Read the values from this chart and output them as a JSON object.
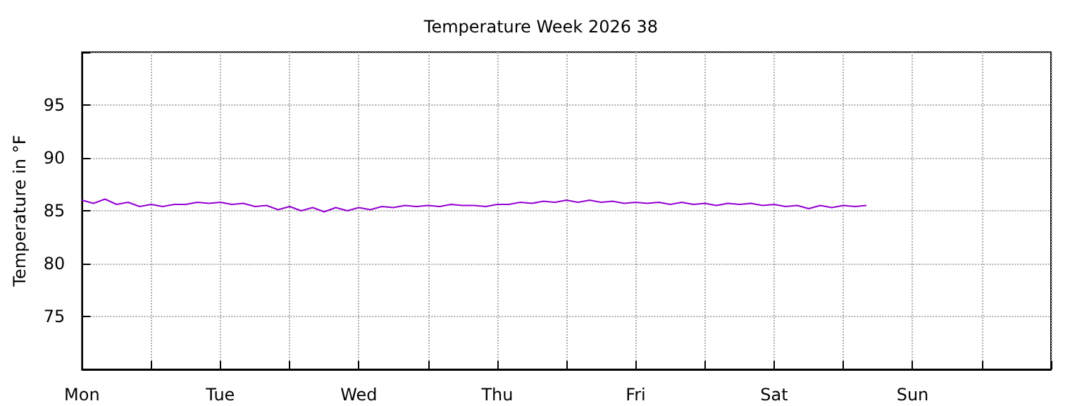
{
  "chart_data": {
    "type": "line",
    "title": "Temperature Week 2026 38",
    "ylabel": "Temperature in °F",
    "categories": [
      "Mon",
      null,
      null,
      null,
      null,
      null,
      null,
      null,
      null,
      null,
      null,
      null,
      "Tue",
      null,
      null,
      null,
      null,
      null,
      null,
      null,
      null,
      null,
      null,
      null,
      "Wed",
      null,
      null,
      null,
      null,
      null,
      null,
      null,
      null,
      null,
      null,
      null,
      "Thu",
      null,
      null,
      null,
      null,
      null,
      null,
      null,
      null,
      null,
      null,
      null,
      "Fri",
      null,
      null,
      null,
      null,
      null,
      null,
      null,
      null,
      null,
      null,
      null,
      "Sat",
      null,
      null,
      null,
      null,
      null,
      null,
      null,
      null,
      null,
      null,
      null,
      "Sun",
      null,
      null,
      null,
      null,
      null,
      null,
      null,
      null,
      null,
      null,
      null,
      null
    ],
    "series": [
      {
        "color": "#9400d3",
        "values": [
          86.0,
          85.7,
          86.1,
          85.6,
          85.8,
          85.4,
          85.6,
          85.4,
          85.6,
          85.6,
          85.8,
          85.7,
          85.8,
          85.6,
          85.7,
          85.4,
          85.5,
          85.1,
          85.4,
          85.0,
          85.3,
          84.9,
          85.3,
          85.0,
          85.3,
          85.1,
          85.4,
          85.3,
          85.5,
          85.4,
          85.5,
          85.4,
          85.6,
          85.5,
          85.5,
          85.4,
          85.6,
          85.6,
          85.8,
          85.7,
          85.9,
          85.8,
          86.0,
          85.8,
          86.0,
          85.8,
          85.9,
          85.7,
          85.8,
          85.7,
          85.8,
          85.6,
          85.8,
          85.6,
          85.7,
          85.5,
          85.7,
          85.6,
          85.7,
          85.5,
          85.6,
          85.4,
          85.5,
          85.2,
          85.5,
          85.3,
          85.5,
          85.4,
          85.5,
          null,
          null,
          null,
          null,
          null,
          null,
          null,
          null,
          null,
          null,
          null,
          null,
          null,
          null,
          null,
          null
        ]
      }
    ],
    "ylim": [
      70,
      100
    ],
    "yticks": [
      {
        "value": 70,
        "label": null
      },
      75,
      80,
      85,
      90,
      95,
      {
        "value": 100,
        "label": null
      }
    ],
    "grid": true,
    "marker": "none",
    "line_style": "solid"
  }
}
